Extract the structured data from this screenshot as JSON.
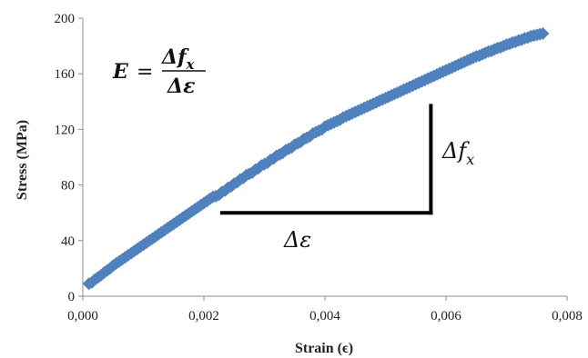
{
  "chart_data": {
    "type": "scatter",
    "title": "",
    "xlabel": "Strain (ϵ)",
    "ylabel": "Stress (MPa)",
    "xlim": [
      0,
      0.008
    ],
    "ylim": [
      0,
      200
    ],
    "x_ticks": [
      "0,000",
      "0,002",
      "0,004",
      "0,006",
      "0,008"
    ],
    "y_ticks": [
      "0",
      "40",
      "80",
      "120",
      "160",
      "200"
    ],
    "grid": false,
    "legend": "none",
    "series": [
      {
        "color": "#4f81bd",
        "marker": "diamond",
        "points": [
          [
            0.0001,
            9
          ],
          [
            0.00015,
            10
          ],
          [
            0.0002,
            12
          ],
          [
            0.00025,
            13.5
          ],
          [
            0.0003,
            15
          ],
          [
            0.00035,
            17
          ],
          [
            0.0004,
            18.5
          ],
          [
            0.00045,
            20
          ],
          [
            0.0005,
            22
          ],
          [
            0.00055,
            23.5
          ],
          [
            0.0006,
            25
          ],
          [
            0.00065,
            26.5
          ],
          [
            0.0007,
            28
          ],
          [
            0.00075,
            29.5
          ],
          [
            0.0008,
            31
          ],
          [
            0.00085,
            32.5
          ],
          [
            0.0009,
            34
          ],
          [
            0.00095,
            35.5
          ],
          [
            0.001,
            37
          ],
          [
            0.00105,
            38.5
          ],
          [
            0.0011,
            40
          ],
          [
            0.00115,
            41.5
          ],
          [
            0.0012,
            43
          ],
          [
            0.00125,
            44.5
          ],
          [
            0.0013,
            46
          ],
          [
            0.00135,
            47.5
          ],
          [
            0.0014,
            49
          ],
          [
            0.00145,
            50.5
          ],
          [
            0.0015,
            52
          ],
          [
            0.00155,
            53.5
          ],
          [
            0.0016,
            55
          ],
          [
            0.00165,
            56.5
          ],
          [
            0.0017,
            58
          ],
          [
            0.00175,
            59.5
          ],
          [
            0.0018,
            61
          ],
          [
            0.00185,
            62.5
          ],
          [
            0.0019,
            64
          ],
          [
            0.00195,
            65.5
          ],
          [
            0.002,
            67
          ],
          [
            0.00205,
            68.5
          ],
          [
            0.0021,
            70
          ],
          [
            0.00215,
            71.5
          ],
          [
            0.0022,
            72
          ],
          [
            0.00225,
            73
          ],
          [
            0.0023,
            75
          ],
          [
            0.00235,
            76
          ],
          [
            0.0024,
            78
          ],
          [
            0.00245,
            79
          ],
          [
            0.0025,
            81
          ],
          [
            0.00255,
            82
          ],
          [
            0.0026,
            84
          ],
          [
            0.00265,
            85
          ],
          [
            0.0027,
            87
          ],
          [
            0.00275,
            88
          ],
          [
            0.0028,
            89
          ],
          [
            0.00285,
            91
          ],
          [
            0.0029,
            92
          ],
          [
            0.00295,
            94
          ],
          [
            0.003,
            95
          ],
          [
            0.00305,
            96
          ],
          [
            0.0031,
            98
          ],
          [
            0.00315,
            99
          ],
          [
            0.0032,
            101
          ],
          [
            0.00325,
            102
          ],
          [
            0.0033,
            103
          ],
          [
            0.00335,
            105
          ],
          [
            0.0034,
            106
          ],
          [
            0.00345,
            107
          ],
          [
            0.0035,
            109
          ],
          [
            0.00355,
            110
          ],
          [
            0.0036,
            111
          ],
          [
            0.00365,
            113
          ],
          [
            0.0037,
            114
          ],
          [
            0.00375,
            115
          ],
          [
            0.0038,
            117
          ],
          [
            0.00385,
            118
          ],
          [
            0.0039,
            119
          ],
          [
            0.00395,
            120
          ],
          [
            0.004,
            122
          ],
          [
            0.00405,
            123
          ],
          [
            0.0041,
            124
          ],
          [
            0.00415,
            125
          ],
          [
            0.0042,
            126
          ],
          [
            0.00425,
            127
          ],
          [
            0.0043,
            128.5
          ],
          [
            0.00435,
            129.5
          ],
          [
            0.0044,
            130.5
          ],
          [
            0.00445,
            131.5
          ],
          [
            0.0045,
            132.5
          ],
          [
            0.00455,
            133.5
          ],
          [
            0.0046,
            134.5
          ],
          [
            0.00465,
            135.5
          ],
          [
            0.0047,
            136.5
          ],
          [
            0.00475,
            137.5
          ],
          [
            0.0048,
            138.5
          ],
          [
            0.00485,
            139.5
          ],
          [
            0.0049,
            140.5
          ],
          [
            0.00495,
            141.5
          ],
          [
            0.005,
            142.5
          ],
          [
            0.00505,
            143.5
          ],
          [
            0.0051,
            144.5
          ],
          [
            0.00515,
            145.5
          ],
          [
            0.0052,
            146.5
          ],
          [
            0.00525,
            147.5
          ],
          [
            0.0053,
            148.5
          ],
          [
            0.00535,
            149.5
          ],
          [
            0.0054,
            150.5
          ],
          [
            0.00545,
            151.5
          ],
          [
            0.0055,
            152.5
          ],
          [
            0.00555,
            153.5
          ],
          [
            0.0056,
            154.5
          ],
          [
            0.00565,
            155.5
          ],
          [
            0.0057,
            156.5
          ],
          [
            0.00575,
            157.5
          ],
          [
            0.0058,
            158.5
          ],
          [
            0.00585,
            159.5
          ],
          [
            0.0059,
            160.5
          ],
          [
            0.00595,
            161.5
          ],
          [
            0.006,
            162.5
          ],
          [
            0.00605,
            163.5
          ],
          [
            0.0061,
            164.5
          ],
          [
            0.00615,
            165.5
          ],
          [
            0.0062,
            166.5
          ],
          [
            0.00625,
            167.5
          ],
          [
            0.0063,
            168.5
          ],
          [
            0.00635,
            169.5
          ],
          [
            0.0064,
            170.5
          ],
          [
            0.00645,
            171.5
          ],
          [
            0.0065,
            172.5
          ],
          [
            0.00655,
            173
          ],
          [
            0.0066,
            174
          ],
          [
            0.00665,
            175
          ],
          [
            0.0067,
            176
          ],
          [
            0.00675,
            176.5
          ],
          [
            0.0068,
            177.5
          ],
          [
            0.00685,
            178.5
          ],
          [
            0.0069,
            179
          ],
          [
            0.00695,
            180
          ],
          [
            0.007,
            181
          ],
          [
            0.00705,
            181.5
          ],
          [
            0.0071,
            182.5
          ],
          [
            0.00715,
            183
          ],
          [
            0.0072,
            184
          ],
          [
            0.00725,
            184.5
          ],
          [
            0.0073,
            185.5
          ],
          [
            0.00735,
            186
          ],
          [
            0.0074,
            187
          ],
          [
            0.00745,
            187.5
          ],
          [
            0.0075,
            188
          ],
          [
            0.00755,
            188.5
          ],
          [
            0.0076,
            189
          ]
        ]
      }
    ],
    "annotations": {
      "formula_lhs": "E",
      "formula_eq": "=",
      "formula_numerator": "Δf",
      "formula_numerator_sub": "x",
      "formula_denominator": "Δε",
      "slope_horizontal": {
        "x0": 0.0023,
        "x1": 0.00575,
        "y": 60
      },
      "slope_vertical": {
        "x": 0.00575,
        "y0": 60,
        "y1": 137
      },
      "delta_f_label": "Δf",
      "delta_f_sub": "x",
      "delta_eps_label": "Δε"
    }
  }
}
